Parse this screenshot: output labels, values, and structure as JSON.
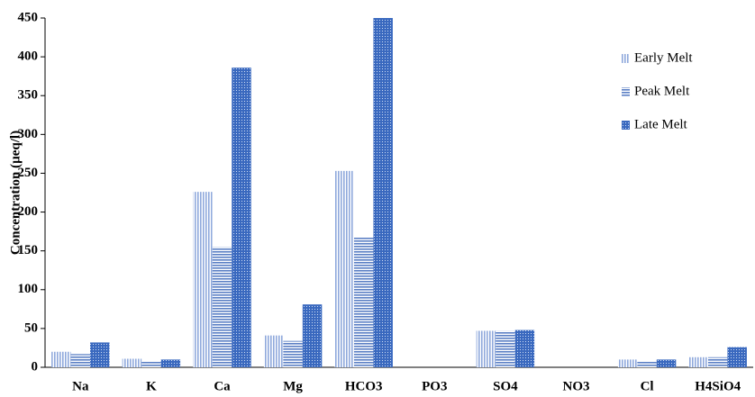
{
  "chart_data": {
    "type": "bar",
    "y_label": "Concentration (µeq/l)",
    "categories": [
      "Na",
      "K",
      "Ca",
      "Mg",
      "HCO3",
      "PO3",
      "SO4",
      "NO3",
      "Cl",
      "H4SiO4"
    ],
    "series": [
      {
        "name": "Early Melt",
        "color": "#8fa9dc",
        "pattern": "vertical",
        "values": [
          20,
          11,
          226,
          41,
          253,
          0,
          47,
          0,
          10,
          13
        ]
      },
      {
        "name": "Peak Melt",
        "color": "#5a7fc4",
        "pattern": "horizontal",
        "values": [
          17,
          8,
          155,
          34,
          167,
          0,
          47,
          0,
          8,
          13
        ]
      },
      {
        "name": "Late Melt",
        "color": "#3a69bf",
        "pattern": "dots",
        "values": [
          32,
          10,
          386,
          81,
          450,
          0,
          48,
          0,
          10,
          26
        ]
      }
    ],
    "ylim": [
      0,
      450
    ],
    "yticks": [
      0,
      50,
      100,
      150,
      200,
      250,
      300,
      350,
      400,
      450
    ],
    "legend": "upper right"
  }
}
